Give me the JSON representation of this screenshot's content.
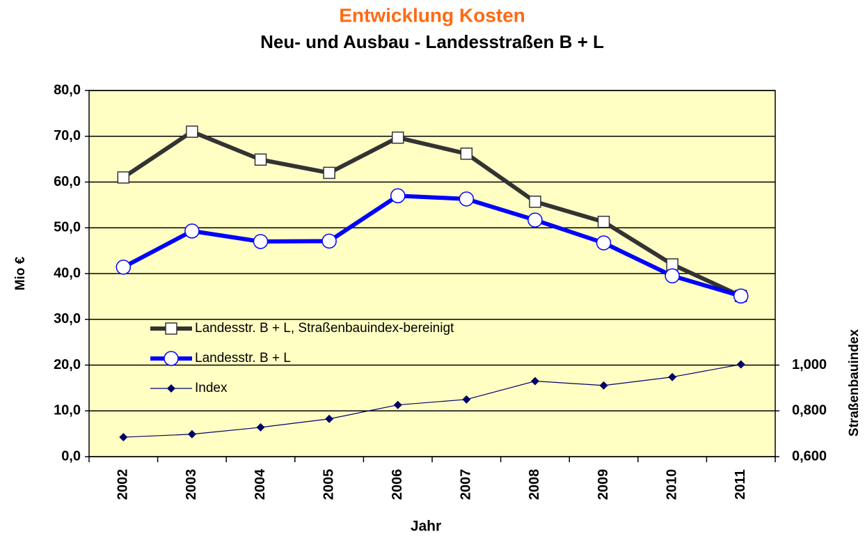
{
  "chart_data": {
    "type": "line",
    "title": "Entwicklung Kosten",
    "subtitle": "Neu- und Ausbau - Landesstraßen B + L",
    "x_label": "Jahr",
    "y_label": "Mio €",
    "y2_label": "Straßenbauindex",
    "categories": [
      "2002",
      "2003",
      "2004",
      "2005",
      "2006",
      "2007",
      "2008",
      "2009",
      "2010",
      "2011"
    ],
    "ylim": [
      0,
      80
    ],
    "yticks": [
      {
        "value": 0,
        "label": "0,0"
      },
      {
        "value": 10,
        "label": "10,0"
      },
      {
        "value": 20,
        "label": "20,0"
      },
      {
        "value": 30,
        "label": "30,0"
      },
      {
        "value": 40,
        "label": "40,0"
      },
      {
        "value": 50,
        "label": "50,0"
      },
      {
        "value": 60,
        "label": "60,0"
      },
      {
        "value": 70,
        "label": "70,0"
      },
      {
        "value": 80,
        "label": "80,0"
      }
    ],
    "y2lim": [
      0.6,
      2.2
    ],
    "y2ticks": [
      {
        "value": 0.6,
        "label": "0,600"
      },
      {
        "value": 0.8,
        "label": "0,800"
      },
      {
        "value": 1.0,
        "label": "1,000"
      }
    ],
    "grid": true,
    "legend": "left",
    "series": [
      {
        "name": "Landesstr. B + L, Straßenbauindex-bereinigt",
        "color": "#333333",
        "marker": "square",
        "values": [
          61.0,
          71.0,
          64.9,
          62.0,
          69.7,
          66.2,
          55.7,
          51.3,
          42.0,
          35.1
        ]
      },
      {
        "name": "Landesstr. B + L",
        "color": "#0000ff",
        "marker": "circle",
        "values": [
          41.4,
          49.3,
          47.0,
          47.1,
          57.0,
          56.3,
          51.7,
          46.7,
          39.5,
          35.1
        ]
      },
      {
        "name": "Index",
        "color": "#000066",
        "marker": "diamond",
        "axis": "y2",
        "values": [
          0.685,
          0.698,
          0.728,
          0.765,
          0.826,
          0.85,
          0.93,
          0.911,
          0.948,
          1.003
        ]
      }
    ]
  }
}
